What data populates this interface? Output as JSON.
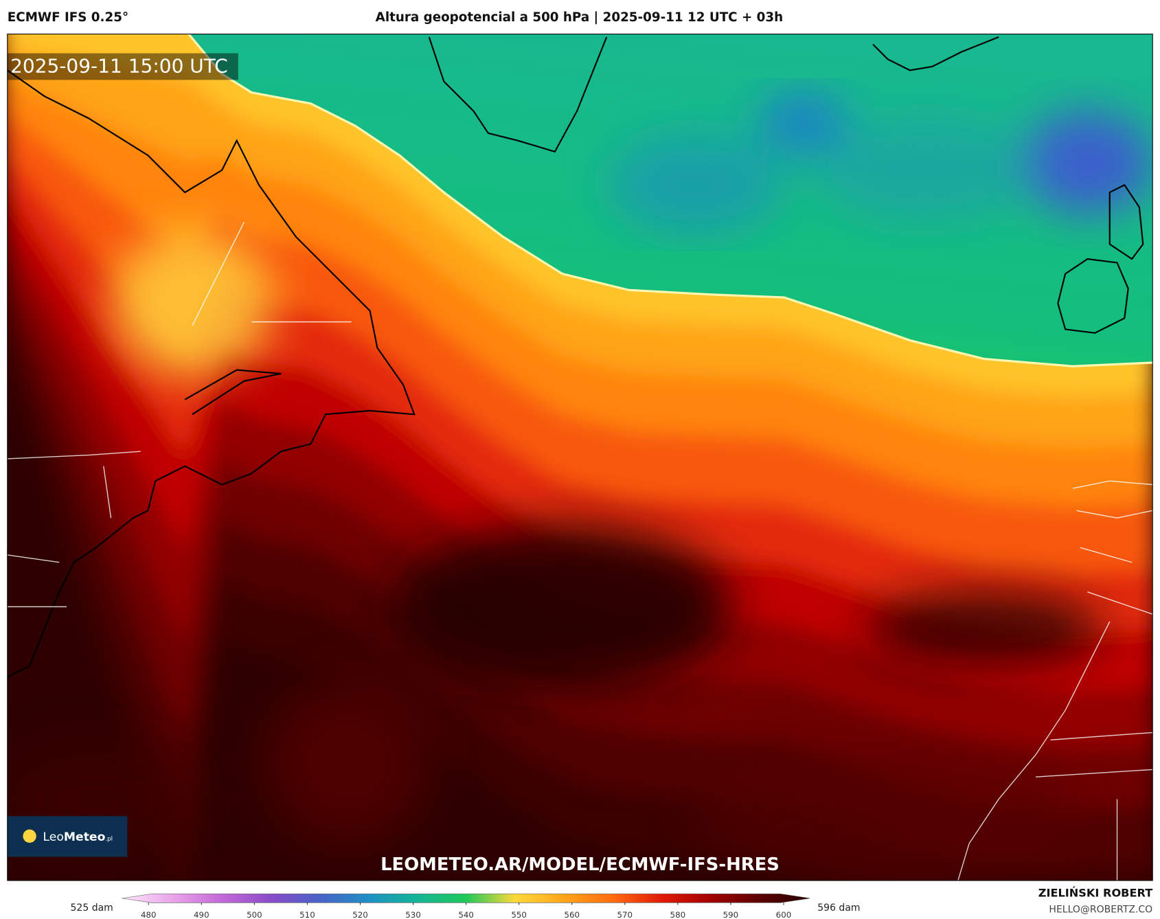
{
  "header": {
    "model": "ECMWF IFS 0.25°",
    "title": "Altura geopotencial a 500 hPa | 2025-09-11 12 UTC + 03h"
  },
  "map": {
    "valid_time": "2025-09-11 15:00 UTC",
    "logo_leo": "Leo",
    "logo_meteo": "Meteo",
    "logo_suffix": ".pl",
    "url": "LEOMETEO.AR/MODEL/ECMWF-IFS-HRES"
  },
  "colorbar": {
    "min_label": "525 dam",
    "max_label": "596 dam",
    "range": [
      475,
      605
    ],
    "ticks": [
      480,
      490,
      500,
      510,
      520,
      530,
      540,
      550,
      560,
      570,
      580,
      590,
      600
    ],
    "colors": [
      "#fde8fb",
      "#eaa6ea",
      "#c56ad8",
      "#8a4cc8",
      "#4a62c8",
      "#1f8fc4",
      "#14b596",
      "#1ec85a",
      "#ffd83a",
      "#ffa51a",
      "#ff6a10",
      "#e01a06",
      "#a00000",
      "#5a0000",
      "#280000"
    ]
  },
  "footer": {
    "author": "ZIELIŃSKI ROBERT",
    "email": "HELLO@ROBERTZ.CO"
  }
}
